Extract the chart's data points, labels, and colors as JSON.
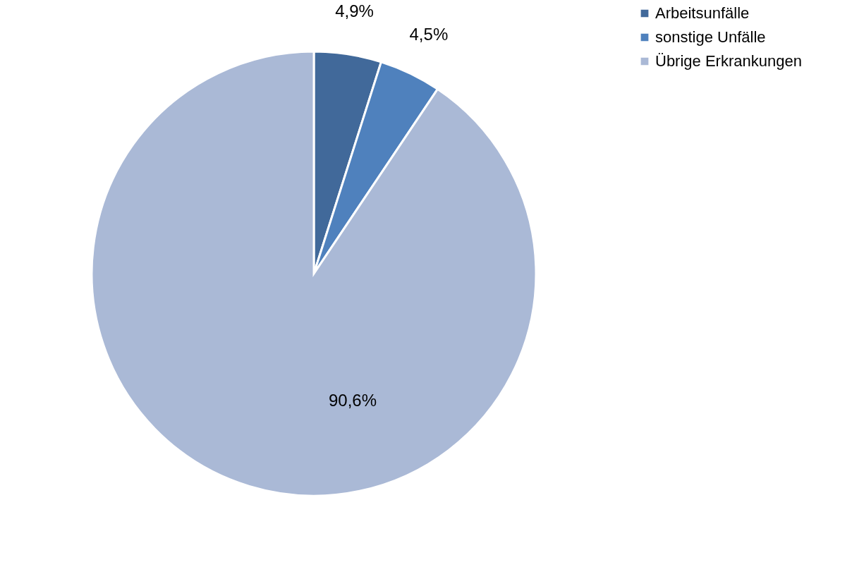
{
  "chart_data": {
    "type": "pie",
    "categories": [
      "Arbeitsunfälle",
      "sonstige Unfälle",
      "Übrige Erkrankungen"
    ],
    "values": [
      4.9,
      4.5,
      90.6
    ],
    "colors": [
      "#41699a",
      "#4f81bd",
      "#aab9d6"
    ],
    "value_labels": [
      "4,9%",
      "4,5%",
      "90,6%"
    ],
    "legend": "right"
  }
}
